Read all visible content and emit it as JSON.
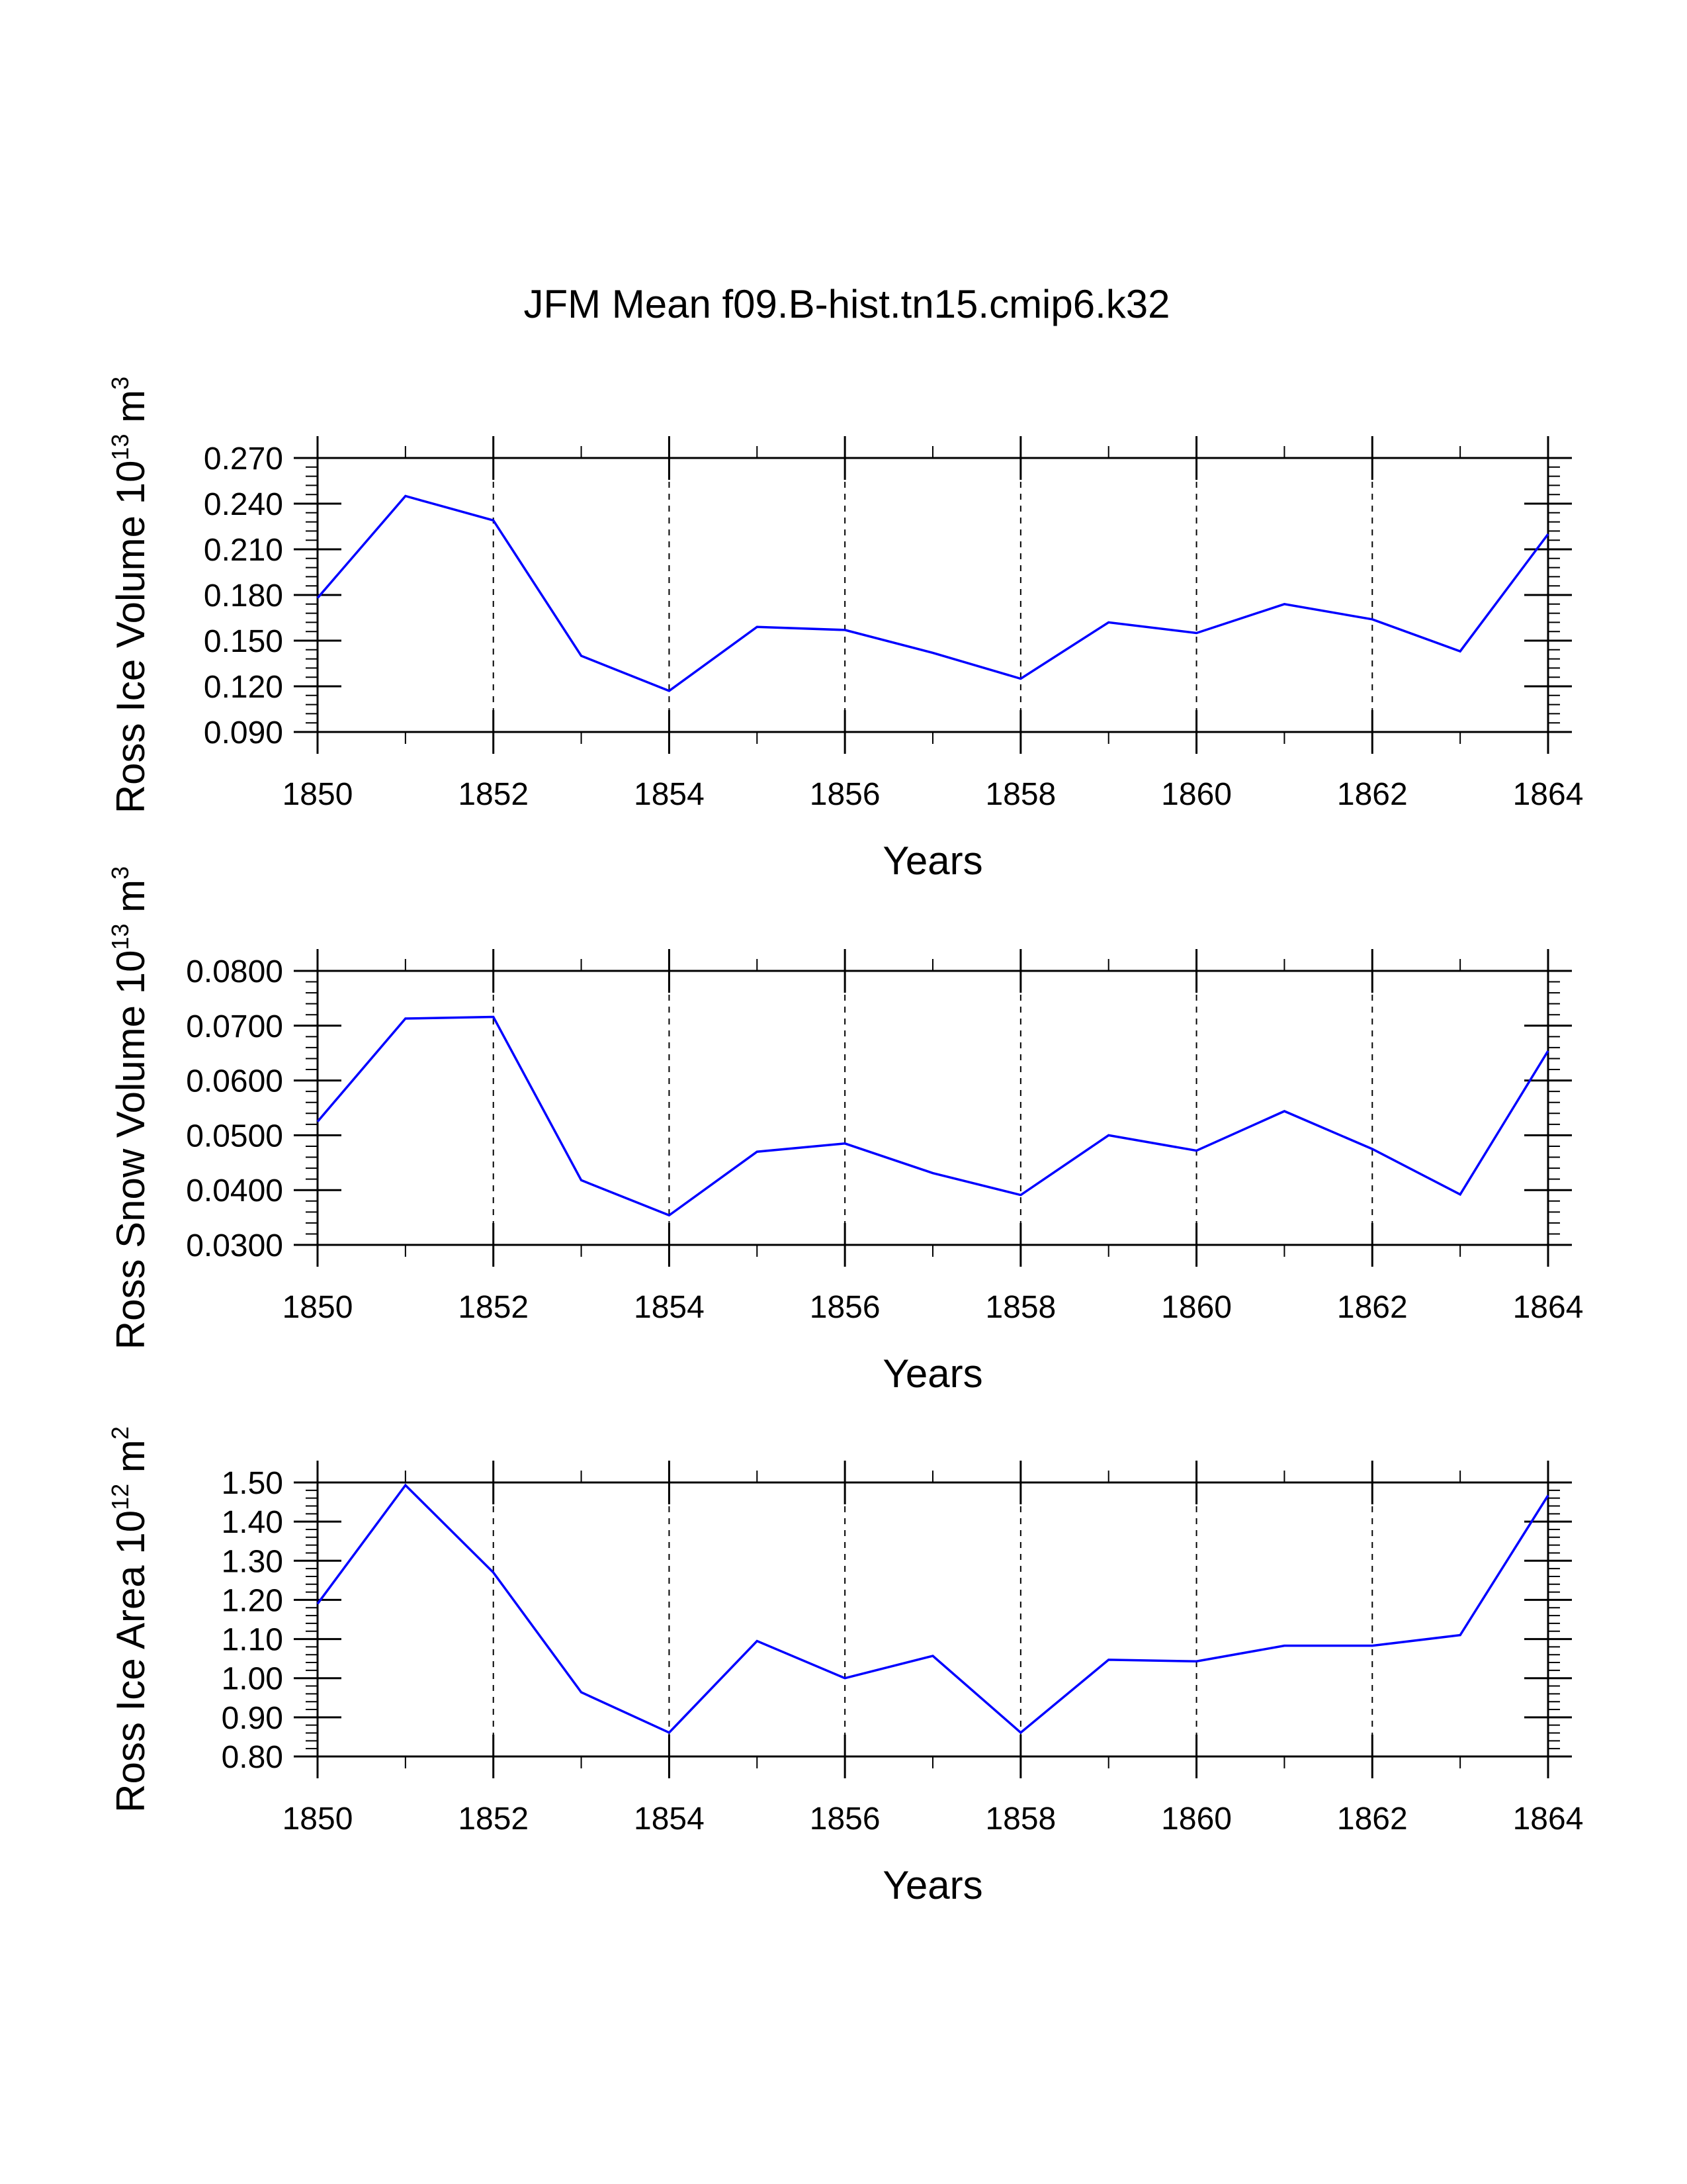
{
  "title": "JFM Mean f09.B-hist.tn15.cmip6.k32",
  "colors": {
    "series": "#0000ff",
    "axis": "#000000",
    "grid": "#000000"
  },
  "chart_data": [
    {
      "type": "line",
      "name": "ross-ice-volume",
      "ylabel": {
        "main": "Ross Ice Volume 10",
        "exp": "13",
        "unit": " m",
        "unit_exp": "3"
      },
      "xlabel": "Years",
      "xlim": [
        1850,
        1864
      ],
      "ylim": [
        0.09,
        0.27
      ],
      "xticks": [
        1850,
        1852,
        1854,
        1856,
        1858,
        1860,
        1862,
        1864
      ],
      "xtick_labels": [
        "1850",
        "1852",
        "1854",
        "1856",
        "1858",
        "1860",
        "1862",
        "1864"
      ],
      "yticks": [
        0.09,
        0.12,
        0.15,
        0.18,
        0.21,
        0.24,
        0.27
      ],
      "ytick_labels": [
        "0.090",
        "0.120",
        "0.150",
        "0.180",
        "0.210",
        "0.240",
        "0.270"
      ],
      "grid": "vertical dashed at major x ticks",
      "x": [
        1850,
        1851,
        1852,
        1853,
        1854,
        1855,
        1856,
        1857,
        1858,
        1859,
        1860,
        1861,
        1862,
        1863,
        1864
      ],
      "values": [
        0.178,
        0.245,
        0.229,
        0.14,
        0.117,
        0.159,
        0.157,
        0.142,
        0.125,
        0.162,
        0.155,
        0.174,
        0.164,
        0.143,
        0.22
      ]
    },
    {
      "type": "line",
      "name": "ross-snow-volume",
      "ylabel": {
        "main": "Ross Snow Volume 10",
        "exp": "13",
        "unit": " m",
        "unit_exp": "3"
      },
      "xlabel": "Years",
      "xlim": [
        1850,
        1864
      ],
      "ylim": [
        0.03,
        0.08
      ],
      "xticks": [
        1850,
        1852,
        1854,
        1856,
        1858,
        1860,
        1862,
        1864
      ],
      "xtick_labels": [
        "1850",
        "1852",
        "1854",
        "1856",
        "1858",
        "1860",
        "1862",
        "1864"
      ],
      "yticks": [
        0.03,
        0.04,
        0.05,
        0.06,
        0.07,
        0.08
      ],
      "ytick_labels": [
        "0.0300",
        "0.0400",
        "0.0500",
        "0.0600",
        "0.0700",
        "0.0800"
      ],
      "grid": "vertical dashed at major x ticks",
      "x": [
        1850,
        1851,
        1852,
        1853,
        1854,
        1855,
        1856,
        1857,
        1858,
        1859,
        1860,
        1861,
        1862,
        1863,
        1864
      ],
      "values": [
        0.0525,
        0.0713,
        0.0716,
        0.0418,
        0.0354,
        0.047,
        0.0485,
        0.0431,
        0.0391,
        0.05,
        0.0472,
        0.0544,
        0.0475,
        0.0392,
        0.0654
      ]
    },
    {
      "type": "line",
      "name": "ross-ice-area",
      "ylabel": {
        "main": "Ross Ice Area 10",
        "exp": "12",
        "unit": " m",
        "unit_exp": "2"
      },
      "xlabel": "Years",
      "xlim": [
        1850,
        1864
      ],
      "ylim": [
        0.8,
        1.5
      ],
      "xticks": [
        1850,
        1852,
        1854,
        1856,
        1858,
        1860,
        1862,
        1864
      ],
      "xtick_labels": [
        "1850",
        "1852",
        "1854",
        "1856",
        "1858",
        "1860",
        "1862",
        "1864"
      ],
      "yticks": [
        0.8,
        0.9,
        1.0,
        1.1,
        1.2,
        1.3,
        1.4,
        1.5
      ],
      "ytick_labels": [
        "0.80",
        "0.90",
        "1.00",
        "1.10",
        "1.20",
        "1.30",
        "1.40",
        "1.50"
      ],
      "grid": "vertical dashed at major x ticks",
      "x": [
        1850,
        1851,
        1852,
        1853,
        1854,
        1855,
        1856,
        1857,
        1858,
        1859,
        1860,
        1861,
        1862,
        1863,
        1864
      ],
      "values": [
        1.19,
        1.493,
        1.27,
        0.964,
        0.861,
        1.095,
        1.0,
        1.057,
        0.861,
        1.047,
        1.043,
        1.083,
        1.083,
        1.11,
        1.467
      ]
    }
  ]
}
